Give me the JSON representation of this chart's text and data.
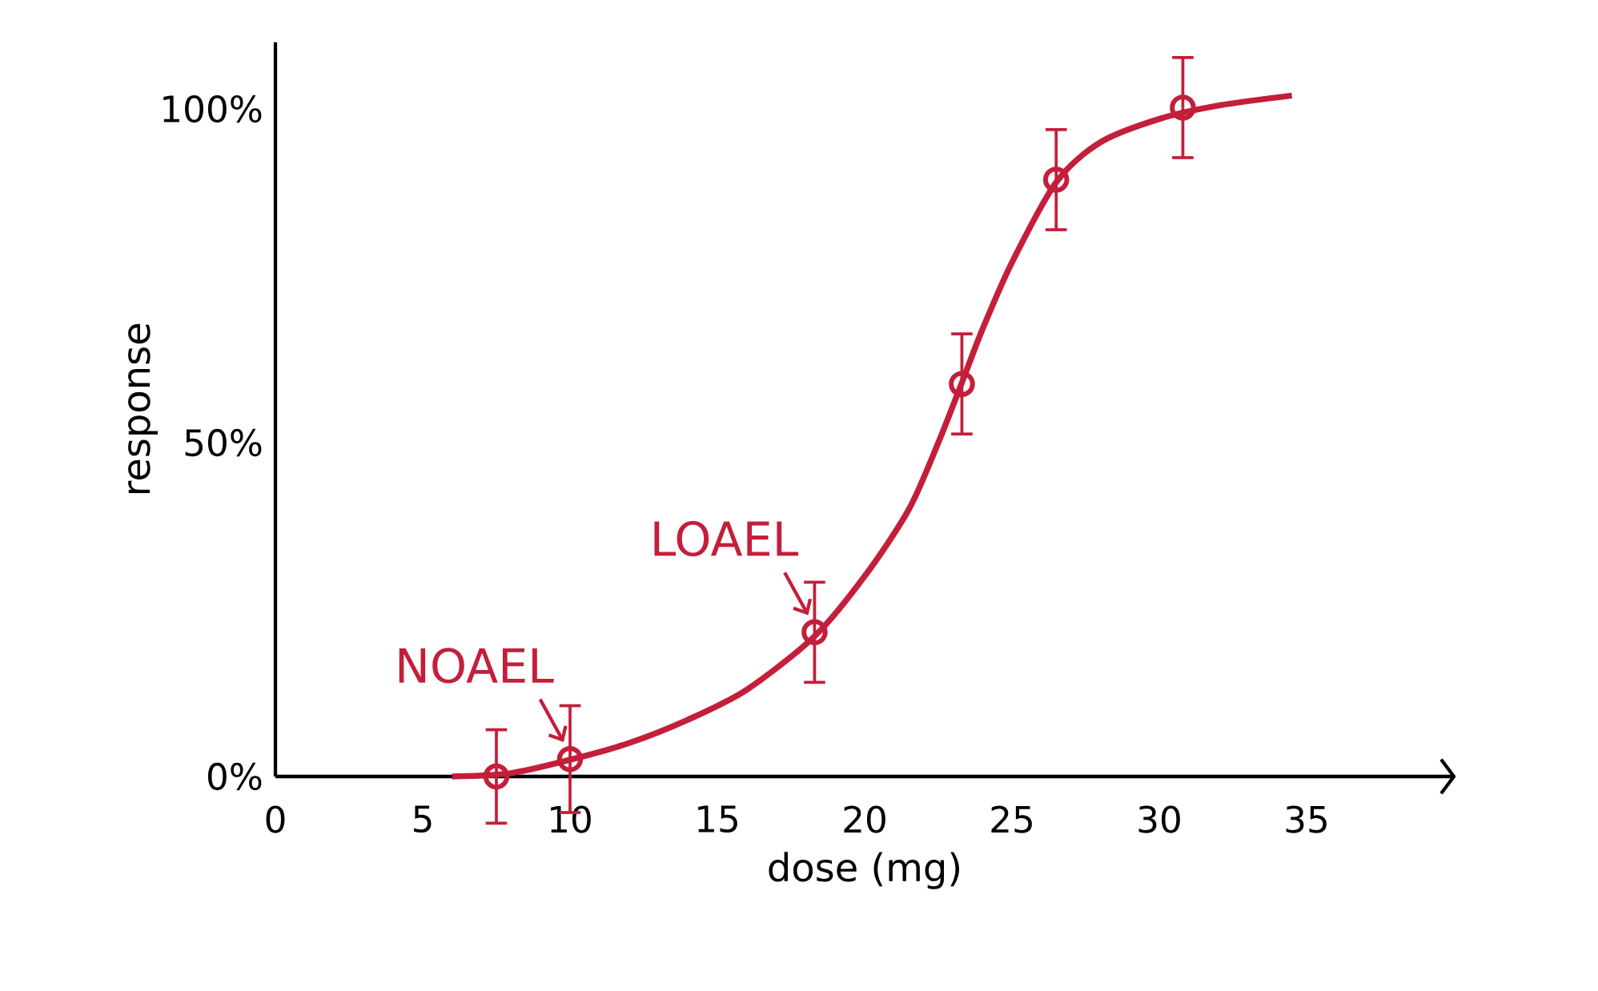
{
  "chart_data": {
    "type": "scatter",
    "xlabel": "dose (mg)",
    "ylabel": "response",
    "xlim": [
      0,
      40
    ],
    "ylim": [
      0,
      110
    ],
    "xticks": [
      0,
      5,
      10,
      15,
      20,
      25,
      30,
      35
    ],
    "yticks": [
      {
        "value": 0,
        "label": "0%"
      },
      {
        "value": 50,
        "label": "50%"
      },
      {
        "value": 100,
        "label": "100%"
      }
    ],
    "grid": false,
    "marker": "circle",
    "series": [
      {
        "color": "#c41e3a",
        "x": [
          7.5,
          10.0,
          18.3,
          23.3,
          26.5,
          30.8
        ],
        "values": [
          0,
          2.6,
          21.6,
          58.8,
          89.4,
          100.2
        ],
        "errors": [
          7,
          8,
          7.5,
          7.5,
          7.5,
          7.5
        ]
      },
      {
        "type": "line",
        "color": "#c41e3a",
        "marker": "none",
        "line_style": "solid",
        "x": [
          6,
          8,
          10,
          12,
          14,
          16,
          18.3,
          20,
          21.5,
          22.5,
          23.3,
          24,
          25,
          26.5,
          28,
          30,
          32,
          34.5
        ],
        "values": [
          0,
          0.5,
          2.5,
          5,
          8.5,
          13,
          21,
          30,
          40,
          50,
          59,
          67,
          77,
          89,
          95,
          98.5,
          100.5,
          102
        ]
      }
    ],
    "annotations": [
      {
        "text": "NOAEL",
        "x": 10.0,
        "y": 2.6
      },
      {
        "text": "LOAEL",
        "x": 18.3,
        "y": 21.6
      }
    ]
  }
}
